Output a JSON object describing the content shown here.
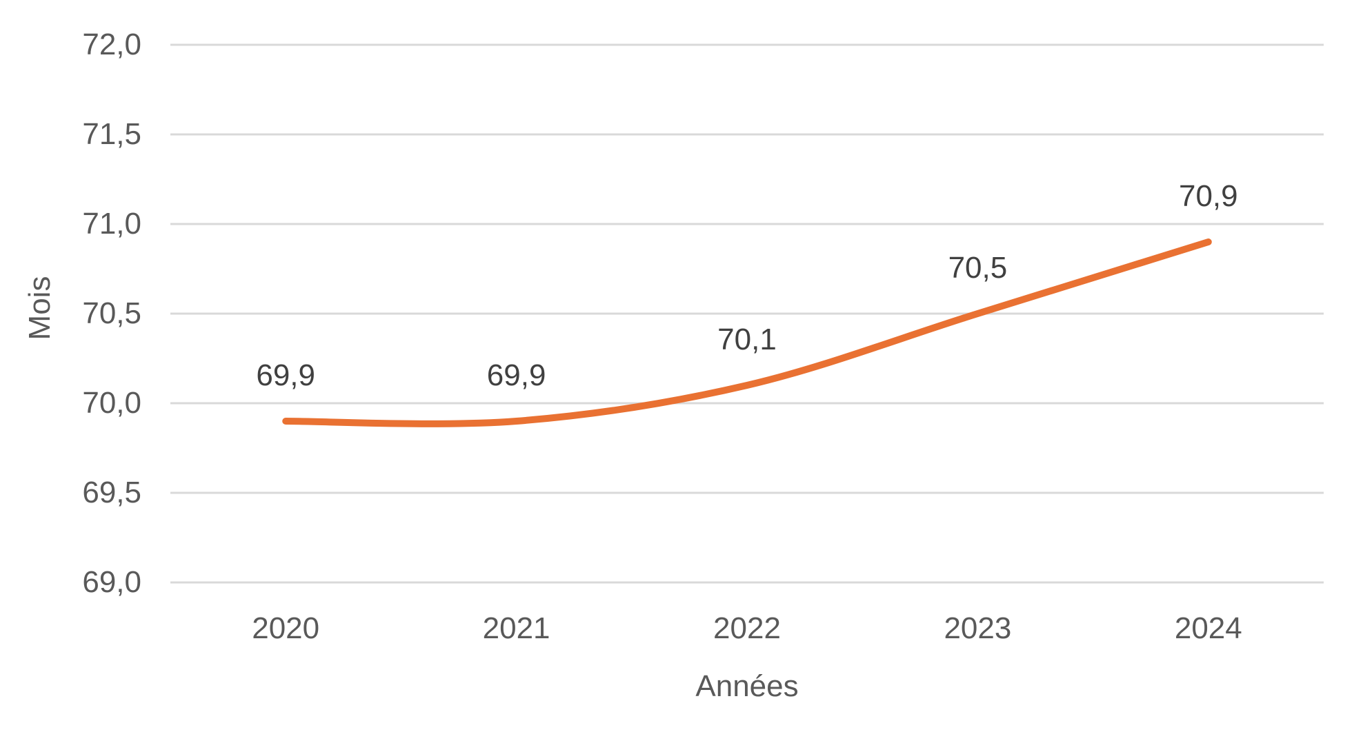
{
  "chart_data": {
    "type": "line",
    "title": "",
    "xlabel": "Années",
    "ylabel": "Mois",
    "categories": [
      "2020",
      "2021",
      "2022",
      "2023",
      "2024"
    ],
    "series": [
      {
        "name": "series-1",
        "values": [
          69.9,
          69.9,
          70.1,
          70.5,
          70.9
        ],
        "data_labels": [
          "69,9",
          "69,9",
          "70,1",
          "70,5",
          "70,9"
        ],
        "color": "#E97132",
        "smooth": true
      }
    ],
    "ylim": [
      69.0,
      72.0
    ],
    "ytick_step": 0.5,
    "ytick_labels": [
      "69,0",
      "69,5",
      "70,0",
      "70,5",
      "71,0",
      "71,5",
      "72,0"
    ],
    "grid": true,
    "legend_position": "none",
    "colors": {
      "line": "#E97132",
      "gridline": "#D9D9D9",
      "tick_text": "#595959",
      "data_label_text": "#404040",
      "background": "#FFFFFF"
    }
  }
}
